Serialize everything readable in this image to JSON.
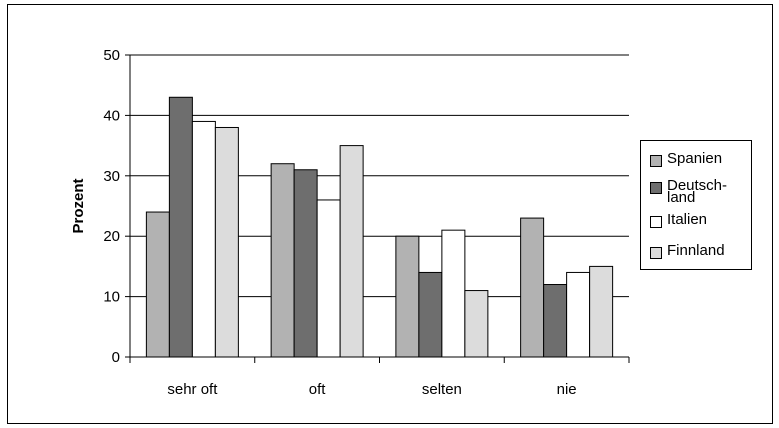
{
  "chart_data": {
    "type": "bar",
    "ylabel": "Prozent",
    "ylim": [
      0,
      50
    ],
    "yticks": [
      "0",
      "10",
      "20",
      "30",
      "40",
      "50"
    ],
    "categories": [
      "sehr oft",
      "oft",
      "selten",
      "nie"
    ],
    "series": [
      {
        "name": "Spanien",
        "color": "#b2b2b2",
        "values": [
          24,
          32,
          20,
          23
        ]
      },
      {
        "name": "Deutsch-\nland",
        "color": "#6e6e6e",
        "values": [
          43,
          31,
          14,
          12
        ]
      },
      {
        "name": "Italien",
        "color": "#ffffff",
        "values": [
          39,
          26,
          21,
          14
        ]
      },
      {
        "name": "Finnland",
        "color": "#dcdcdc",
        "values": [
          38,
          35,
          11,
          15
        ]
      }
    ],
    "grid": true,
    "legend_position": "right"
  }
}
